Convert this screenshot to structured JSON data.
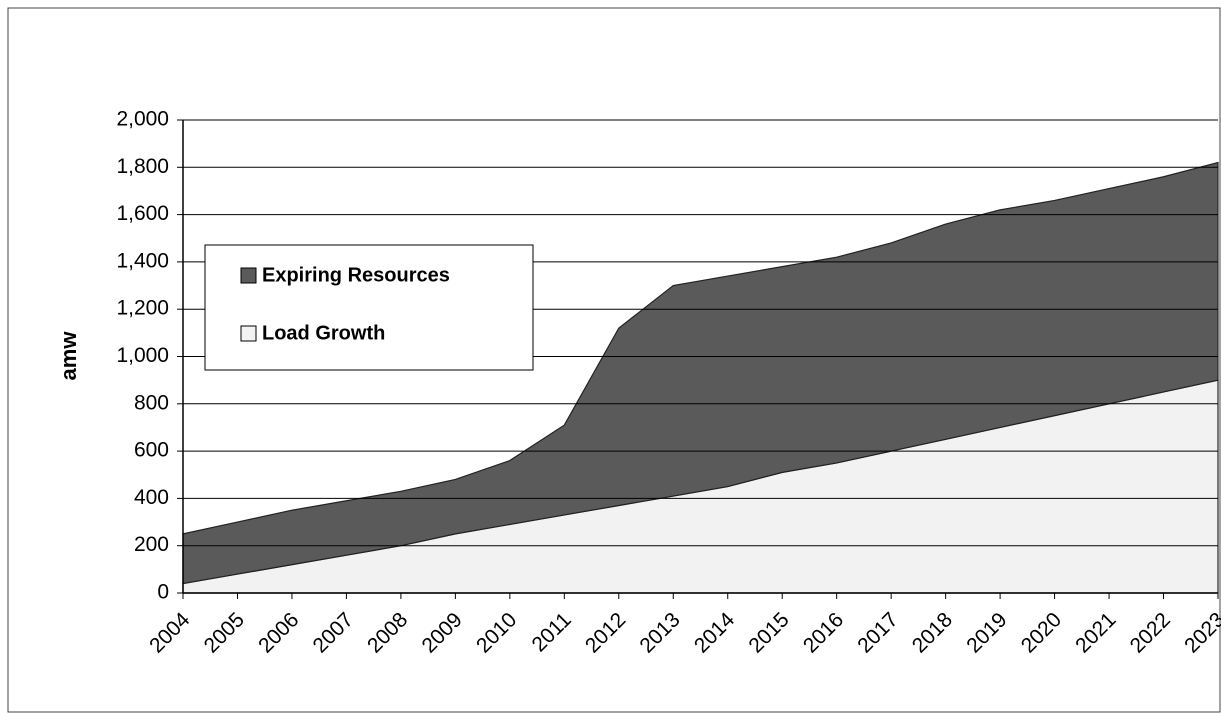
{
  "chart_data": {
    "type": "stacked_area",
    "y_label": "amw",
    "categories": [
      "2004",
      "2005",
      "2006",
      "2007",
      "2008",
      "2009",
      "2010",
      "2011",
      "2012",
      "2013",
      "2014",
      "2015",
      "2016",
      "2017",
      "2018",
      "2019",
      "2020",
      "2021",
      "2022",
      "2023"
    ],
    "series": [
      {
        "name": "Load Growth",
        "color": "#f2f2f2",
        "values": [
          40,
          80,
          120,
          160,
          200,
          250,
          290,
          330,
          370,
          410,
          450,
          510,
          550,
          600,
          650,
          700,
          750,
          800,
          850,
          900
        ]
      },
      {
        "name": "Expiring Resources",
        "color": "#5a5a5a",
        "values": [
          210,
          220,
          230,
          230,
          230,
          230,
          270,
          380,
          750,
          890,
          890,
          870,
          870,
          880,
          910,
          920,
          910,
          910,
          910,
          920
        ]
      }
    ],
    "ylim": [
      0,
      2000
    ],
    "yticks": [
      0,
      200,
      400,
      600,
      800,
      {
        "value": 1000,
        "label": "1,000"
      },
      {
        "value": 1200,
        "label": "1,200"
      },
      {
        "value": 1400,
        "label": "1,400"
      },
      {
        "value": 1600,
        "label": "1,600"
      },
      {
        "value": 1800,
        "label": "1,800"
      },
      {
        "value": 2000,
        "label": "2,000"
      }
    ],
    "grid": true,
    "legend": "upper-left"
  }
}
